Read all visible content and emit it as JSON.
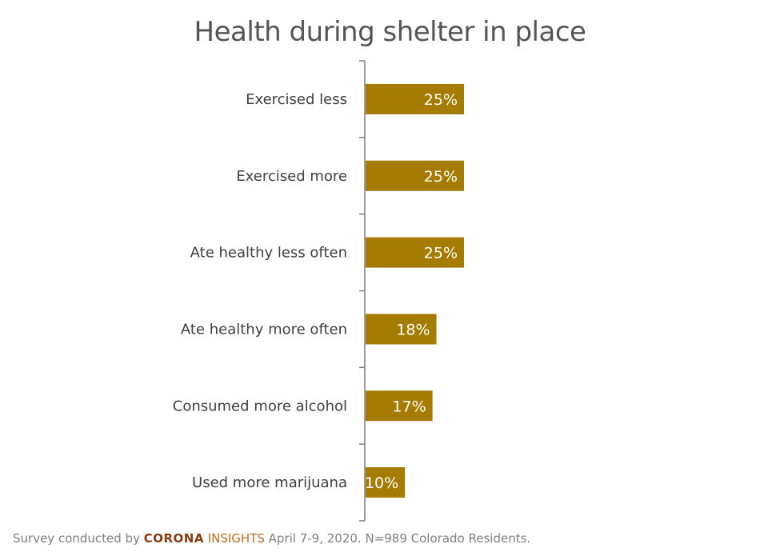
{
  "chart_data": {
    "type": "bar",
    "orientation": "horizontal",
    "title": "Health during shelter in place",
    "categories": [
      "Exercised less",
      "Exercised more",
      "Ate healthy less often",
      "Ate healthy more often",
      "Consumed more alcohol",
      "Used more marijuana"
    ],
    "values": [
      25,
      25,
      25,
      18,
      17,
      10
    ],
    "data_labels": [
      "25%",
      "25%",
      "25%",
      "18%",
      "17%",
      "10%"
    ],
    "value_unit": "%",
    "xlim": [
      0,
      100
    ],
    "grid": false,
    "legend": "none",
    "colors": {
      "bar": "#a67c00",
      "axis": "#7f7f7f",
      "data_label": "#ffffff"
    }
  },
  "footer": {
    "prefix": "Survey conducted by ",
    "brand_part1": "CORONA",
    "brand_part2": " INSIGHTS",
    "suffix": " April 7-9, 2020. N=989 Colorado Residents."
  }
}
